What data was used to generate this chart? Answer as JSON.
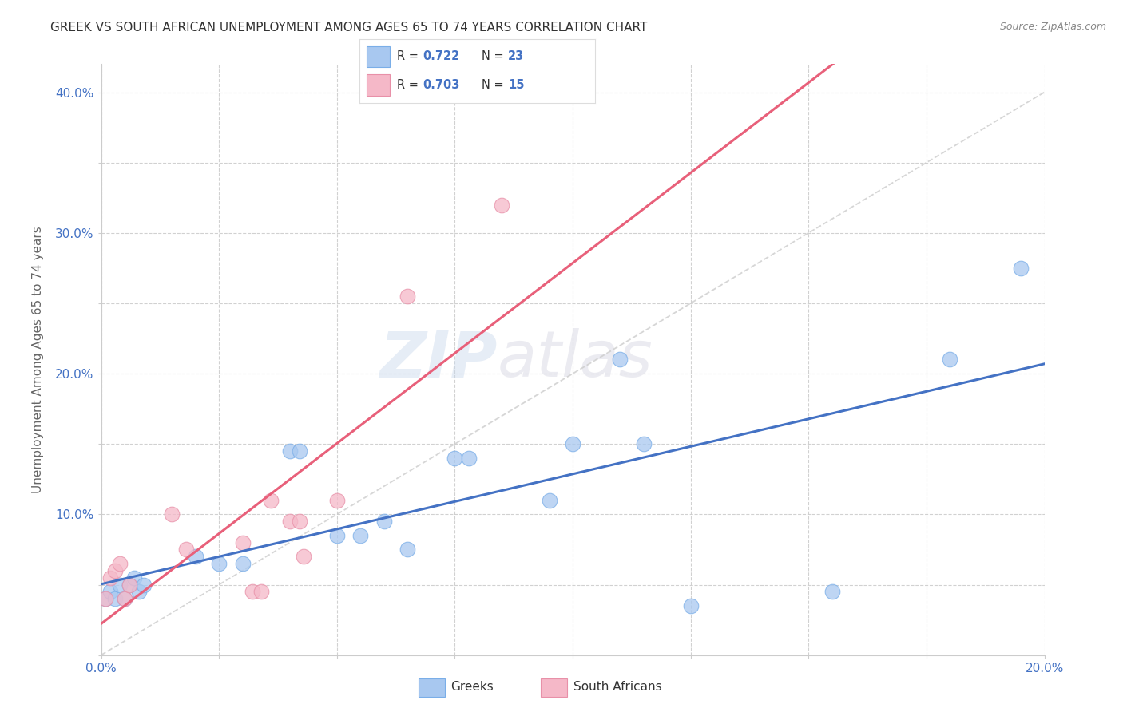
{
  "title": "GREEK VS SOUTH AFRICAN UNEMPLOYMENT AMONG AGES 65 TO 74 YEARS CORRELATION CHART",
  "source": "Source: ZipAtlas.com",
  "ylabel": "Unemployment Among Ages 65 to 74 years",
  "watermark": "ZIPatlas",
  "xlim": [
    0.0,
    0.2
  ],
  "ylim": [
    0.0,
    0.42
  ],
  "xticks": [
    0.0,
    0.025,
    0.05,
    0.075,
    0.1,
    0.125,
    0.15,
    0.175,
    0.2
  ],
  "yticks": [
    0.0,
    0.05,
    0.1,
    0.15,
    0.2,
    0.25,
    0.3,
    0.35,
    0.4
  ],
  "xtick_labels": [
    "0.0%",
    "",
    "",
    "",
    "",
    "",
    "",
    "",
    "20.0%"
  ],
  "ytick_labels": [
    "",
    "",
    "10.0%",
    "",
    "20.0%",
    "",
    "30.0%",
    "",
    "40.0%"
  ],
  "greek_color": "#A8C8F0",
  "greek_edge_color": "#7AAEE8",
  "sa_color": "#F5B8C8",
  "sa_edge_color": "#E890A8",
  "greek_line_color": "#4472C4",
  "sa_line_color": "#E8607A",
  "diagonal_color": "#CCCCCC",
  "greeks_x": [
    0.001,
    0.002,
    0.003,
    0.004,
    0.005,
    0.006,
    0.007,
    0.008,
    0.009,
    0.02,
    0.025,
    0.03,
    0.04,
    0.042,
    0.05,
    0.055,
    0.06,
    0.065,
    0.075,
    0.078,
    0.095,
    0.1,
    0.11,
    0.115,
    0.125,
    0.155,
    0.18,
    0.195
  ],
  "greeks_y": [
    0.04,
    0.045,
    0.04,
    0.05,
    0.04,
    0.05,
    0.055,
    0.045,
    0.05,
    0.07,
    0.065,
    0.065,
    0.145,
    0.145,
    0.085,
    0.085,
    0.095,
    0.075,
    0.14,
    0.14,
    0.11,
    0.15,
    0.21,
    0.15,
    0.035,
    0.045,
    0.21,
    0.275
  ],
  "sa_x": [
    0.001,
    0.002,
    0.003,
    0.004,
    0.005,
    0.006,
    0.015,
    0.018,
    0.03,
    0.032,
    0.034,
    0.036,
    0.04,
    0.042,
    0.043,
    0.05,
    0.065,
    0.085
  ],
  "sa_y": [
    0.04,
    0.055,
    0.06,
    0.065,
    0.04,
    0.05,
    0.1,
    0.075,
    0.08,
    0.045,
    0.045,
    0.11,
    0.095,
    0.095,
    0.07,
    0.11,
    0.255,
    0.32
  ]
}
